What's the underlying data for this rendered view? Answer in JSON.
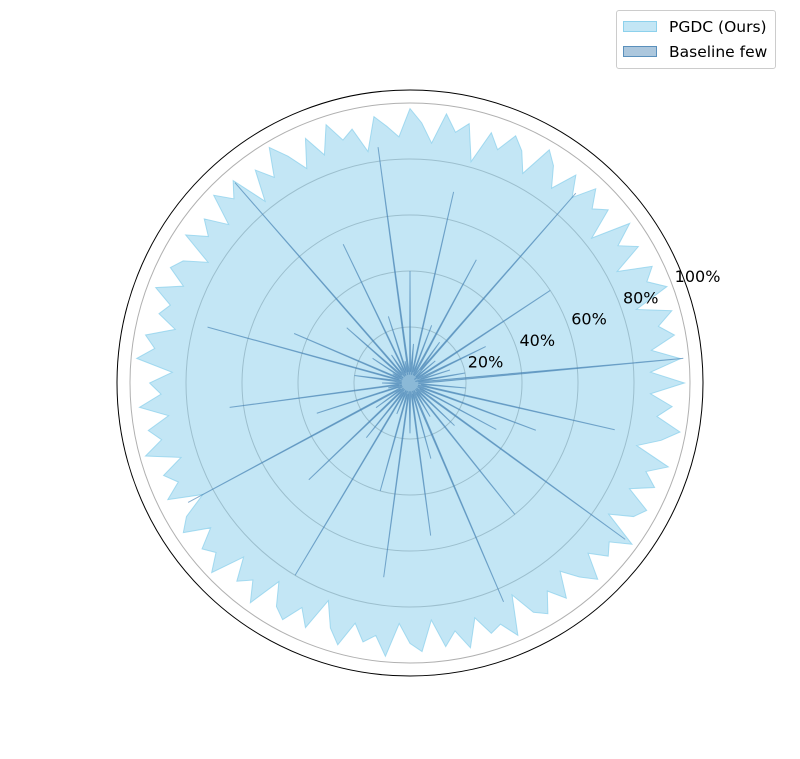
{
  "chart_data": {
    "type": "polar-area",
    "title": "",
    "rlim": [
      0,
      100
    ],
    "r_ticks": [
      "20%",
      "40%",
      "60%",
      "80%",
      "100%"
    ],
    "r_tick_values": [
      20,
      40,
      60,
      80,
      100
    ],
    "grid": true,
    "legend_placement": "top-right",
    "series": [
      {
        "name": "PGDC (Ours)",
        "color": "#87CEEB",
        "opacity": 0.5,
        "values": [
          98,
          86,
          97,
          87,
          96,
          91,
          97,
          85,
          98,
          92,
          96,
          84,
          95,
          89,
          97,
          83,
          94,
          90,
          96,
          88,
          95,
          86,
          93,
          97,
          85,
          92,
          96,
          89,
          94,
          82,
          95,
          91,
          97,
          86,
          93,
          98,
          88,
          92,
          96,
          84,
          93,
          90,
          97,
          87,
          95,
          85,
          92,
          98,
          88,
          94,
          83,
          96,
          91,
          97,
          86,
          94,
          89,
          96,
          84,
          92,
          95,
          88,
          97,
          90,
          93,
          86,
          96,
          92,
          98,
          85,
          93,
          89,
          97,
          87,
          95,
          91,
          98,
          86,
          94,
          90,
          96,
          84,
          93,
          97,
          88,
          95,
          92,
          98,
          86,
          94,
          90,
          97,
          85,
          93,
          96,
          89,
          95,
          83,
          92,
          97,
          88,
          94,
          91,
          98,
          86,
          93,
          96,
          85,
          95,
          90,
          97,
          87,
          94,
          92,
          98,
          84,
          93,
          96,
          89,
          95,
          86,
          92,
          97,
          88,
          94,
          91,
          98,
          85,
          93,
          96,
          87,
          95,
          90,
          97,
          84,
          92,
          98,
          89,
          94,
          86
        ]
      },
      {
        "name": "Baseline few",
        "color": "#4682B4",
        "opacity": 0.45,
        "values": [
          4,
          10,
          98,
          3,
          20,
          6,
          2,
          15,
          4,
          8,
          30,
          3,
          5,
          60,
          4,
          2,
          12,
          5,
          3,
          90,
          6,
          18,
          4,
          3,
          50,
          7,
          3,
          22,
          5,
          4,
          70,
          3,
          6,
          14,
          4,
          40,
          3,
          5,
          85,
          4,
          8,
          3,
          25,
          5,
          4,
          55,
          3,
          6,
          12,
          4,
          3,
          95,
          5,
          4,
          30,
          6,
          3,
          16,
          4,
          7,
          3,
          45,
          5,
          4,
          75,
          3,
          6,
          20,
          4,
          3,
          10,
          5,
          3,
          65,
          4,
          8,
          3,
          35,
          5,
          4,
          3,
          90,
          6,
          4,
          15,
          3,
          5,
          50,
          4,
          3,
          25,
          6,
          4,
          80,
          3,
          5,
          12,
          4,
          3,
          40,
          5,
          4,
          70,
          3,
          6,
          18,
          4,
          3,
          55,
          5,
          4,
          28,
          3,
          6,
          85,
          4,
          3,
          14,
          5,
          4,
          60,
          3,
          5,
          22,
          4,
          3,
          95,
          6,
          4,
          35,
          3,
          5,
          48,
          4,
          3,
          75,
          5,
          4,
          20,
          3
        ]
      }
    ]
  }
}
